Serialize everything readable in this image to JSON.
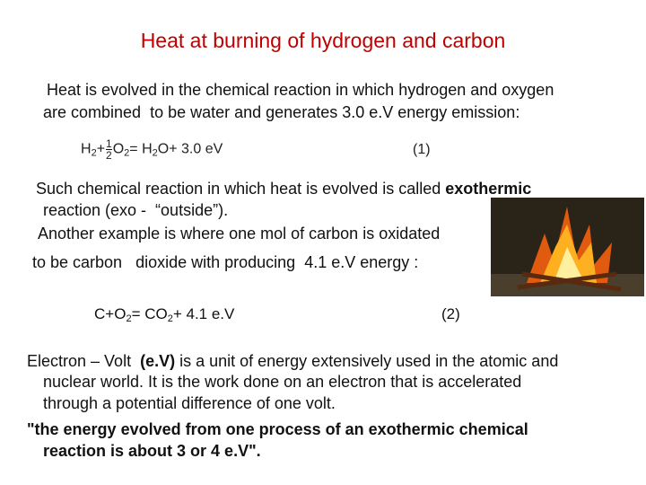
{
  "title": "Heat at burning of hydrogen and carbon",
  "paragraph_1": [
    [
      "Heat is evolved in the chemical reaction in which hydrogen and oxygen"
    ],
    [
      "are combined  to be water and generates 3.0 e.V energy emission:"
    ]
  ],
  "equation_1": {
    "terms": [
      "H",
      "2",
      "+",
      "1",
      "2",
      "O",
      "2",
      "= H",
      "2",
      "O+ 3.0 eV"
    ],
    "number": "(1)"
  },
  "paragraph_2": [
    [
      "Such chemical reaction in which heat is evolved is called ",
      "exothermic"
    ],
    [
      "reaction (exo -  “outside”)."
    ],
    [
      "Another example is where one mol of carbon is oxidated"
    ],
    [
      "to be carbon   dioxide with producing  4.1 e.V energy :"
    ]
  ],
  "equation_2": {
    "terms": [
      "C+O",
      "2",
      "= CO",
      "2",
      "+ 4.1 e.V"
    ],
    "number": "(2)"
  },
  "paragraph_3": [
    [
      "Electron – Volt  ",
      "(e.V)",
      " is a unit of energy extensively used in the atomic and"
    ],
    [
      "nuclear world. It is the work done on an electron that is accelerated"
    ],
    [
      "through a potential difference of one volt."
    ]
  ],
  "paragraph_4": [
    [
      "\"the energy evolved from one process of an exothermic chemical"
    ],
    [
      "reaction is about 3 or 4 e.V\"."
    ]
  ]
}
